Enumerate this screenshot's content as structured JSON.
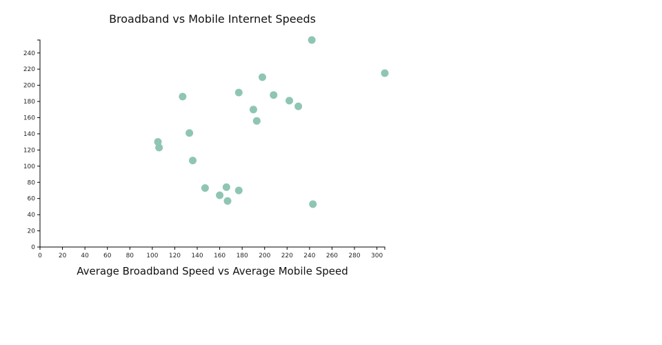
{
  "chart_data": {
    "type": "scatter",
    "title": "Broadband vs Mobile Internet Speeds",
    "xlabel": "Average Broadband Speed vs Average Mobile Speed",
    "ylabel": "",
    "xlim": [
      0,
      307
    ],
    "ylim": [
      0,
      256
    ],
    "x_ticks": [
      0,
      20,
      40,
      60,
      80,
      100,
      120,
      140,
      160,
      180,
      200,
      220,
      240,
      260,
      280,
      300
    ],
    "y_ticks": [
      0,
      20,
      40,
      60,
      80,
      100,
      120,
      140,
      160,
      180,
      200,
      220,
      240
    ],
    "grid": false,
    "point_color": "#8fc5b4",
    "points": [
      {
        "x": 105,
        "y": 130
      },
      {
        "x": 106,
        "y": 123
      },
      {
        "x": 127,
        "y": 186
      },
      {
        "x": 133,
        "y": 141
      },
      {
        "x": 136,
        "y": 107
      },
      {
        "x": 147,
        "y": 73
      },
      {
        "x": 160,
        "y": 64
      },
      {
        "x": 166,
        "y": 74
      },
      {
        "x": 167,
        "y": 57
      },
      {
        "x": 177,
        "y": 191
      },
      {
        "x": 177,
        "y": 70
      },
      {
        "x": 190,
        "y": 170
      },
      {
        "x": 193,
        "y": 156
      },
      {
        "x": 198,
        "y": 210
      },
      {
        "x": 208,
        "y": 188
      },
      {
        "x": 222,
        "y": 181
      },
      {
        "x": 230,
        "y": 174
      },
      {
        "x": 242,
        "y": 256
      },
      {
        "x": 243,
        "y": 53
      },
      {
        "x": 307,
        "y": 215
      }
    ]
  }
}
